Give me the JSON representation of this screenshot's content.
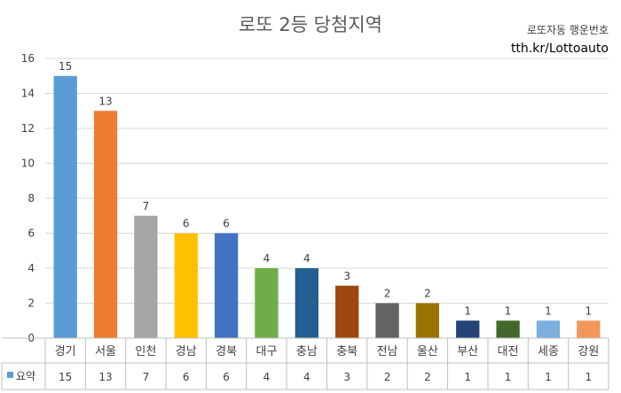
{
  "chart_data": {
    "type": "bar",
    "title": "로또 2등 당첨지역",
    "categories": [
      "경기",
      "서울",
      "인천",
      "경남",
      "경북",
      "대구",
      "충남",
      "충북",
      "전남",
      "울산",
      "부산",
      "대전",
      "세종",
      "강원"
    ],
    "series": [
      {
        "name": "요약",
        "values": [
          15,
          13,
          7,
          6,
          6,
          4,
          4,
          3,
          2,
          2,
          1,
          1,
          1,
          1
        ]
      }
    ],
    "bar_colors": [
      "#5b9bd5",
      "#ed7d31",
      "#a5a5a5",
      "#ffc000",
      "#4472c4",
      "#70ad47",
      "#255e91",
      "#9e480e",
      "#636363",
      "#997300",
      "#264478",
      "#43682b",
      "#7cafdd",
      "#f1975a"
    ],
    "ylim": [
      0,
      16
    ],
    "yticks": [
      0,
      2,
      4,
      6,
      8,
      10,
      12,
      14,
      16
    ],
    "grid": true,
    "data_table": true,
    "legend_marker_color": "#5b9bd5"
  },
  "branding": {
    "line1": "로또자동 행운번호",
    "line2": "tth.kr/Lottoauto"
  }
}
